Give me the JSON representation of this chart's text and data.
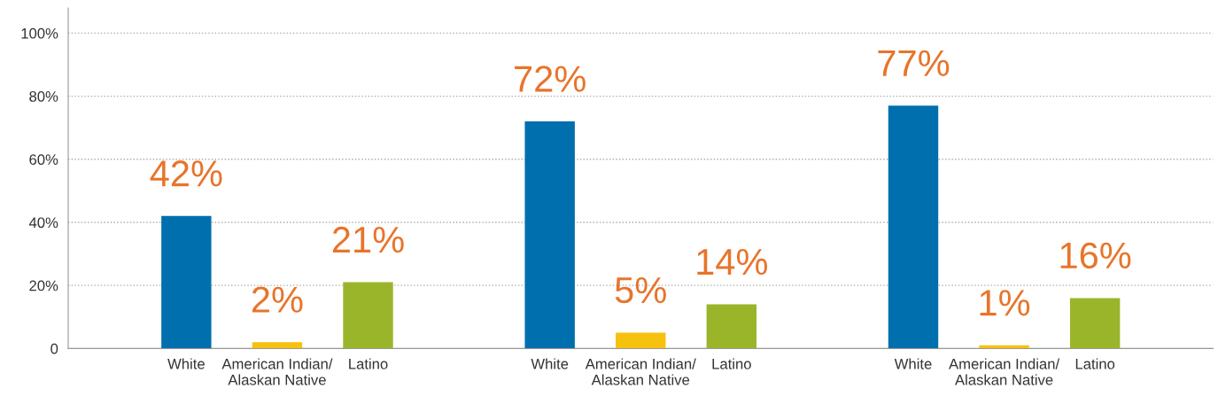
{
  "chart_data": {
    "type": "bar",
    "categories": [
      "White",
      "American Indian/\nAlaskan Native",
      "Latino",
      "White",
      "American Indian/\nAlaskan Native",
      "Latino",
      "White",
      "American Indian/\nAlaskan Native",
      "Latino"
    ],
    "values": [
      42,
      2,
      21,
      72,
      5,
      14,
      77,
      1,
      16
    ],
    "colors": [
      "#006fae",
      "#f6c10f",
      "#9bb52b",
      "#006fae",
      "#f6c10f",
      "#9bb52b",
      "#006fae",
      "#f6c10f",
      "#9bb52b"
    ],
    "value_labels": [
      "42%",
      "2%",
      "21%",
      "72%",
      "5%",
      "14%",
      "77%",
      "1%",
      "16%"
    ],
    "ylim": [
      0,
      108
    ],
    "yticks": [
      {
        "value": 0,
        "label": "0"
      },
      {
        "value": 20,
        "label": "20%"
      },
      {
        "value": 40,
        "label": "40%"
      },
      {
        "value": 60,
        "label": "60%"
      },
      {
        "value": 80,
        "label": "80%"
      },
      {
        "value": 100,
        "label": "100%"
      }
    ],
    "grid": "y"
  }
}
